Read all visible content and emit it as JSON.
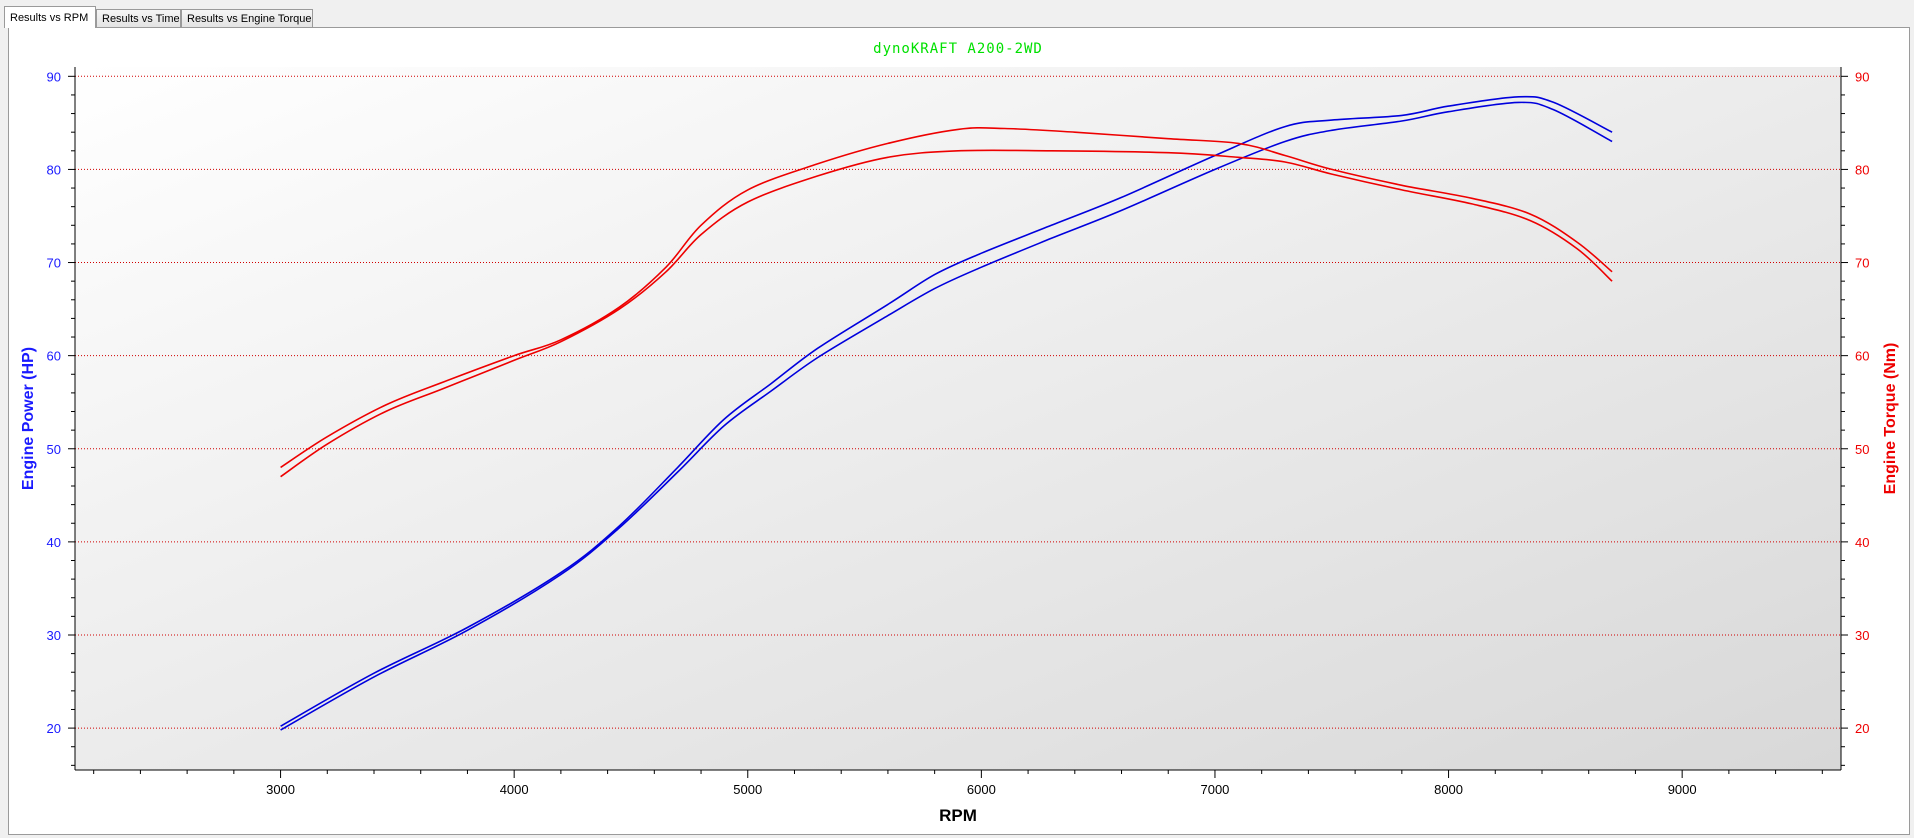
{
  "tabs": [
    {
      "label": "Results vs RPM",
      "active": true
    },
    {
      "label": "Results vs Time",
      "active": false
    },
    {
      "label": "Results vs Engine Torque",
      "active": false
    }
  ],
  "chart_data": {
    "type": "line",
    "title": "dynoKRAFT A200-2WD",
    "title_color": "#00e000",
    "xlabel": "RPM",
    "ylabel_left": "Engine Power (HP)",
    "ylabel_right": "Engine Torque (Nm)",
    "xlim": [
      2120,
      9680
    ],
    "ylim_left": [
      15.5,
      91
    ],
    "ylim_right": [
      15.5,
      91
    ],
    "x_ticks": [
      3000,
      4000,
      5000,
      6000,
      7000,
      8000,
      9000
    ],
    "y_ticks_left": [
      20,
      30,
      40,
      50,
      60,
      70,
      80,
      90
    ],
    "y_ticks_right": [
      20,
      30,
      40,
      50,
      60,
      70,
      80,
      90
    ],
    "grid": "horizontal dotted",
    "colors": {
      "power": "#0000dd",
      "torque": "#ee0000",
      "left_axis": "#1a1aff",
      "right_axis": "#ee0000",
      "grid": "#d00000"
    },
    "series": [
      {
        "axis": "left",
        "color": "#0000dd",
        "points": [
          [
            3000,
            19.8
          ],
          [
            3400,
            25.5
          ],
          [
            3800,
            30.5
          ],
          [
            4200,
            36.5
          ],
          [
            4450,
            41.5
          ],
          [
            4700,
            47.5
          ],
          [
            4900,
            52.5
          ],
          [
            5100,
            56.2
          ],
          [
            5300,
            59.8
          ],
          [
            5600,
            64.3
          ],
          [
            5800,
            67.2
          ],
          [
            6000,
            69.5
          ],
          [
            6300,
            72.6
          ],
          [
            6600,
            75.6
          ],
          [
            7000,
            80
          ],
          [
            7300,
            83
          ],
          [
            7500,
            84.2
          ],
          [
            7800,
            85.2
          ],
          [
            8000,
            86.2
          ],
          [
            8300,
            87.2
          ],
          [
            8450,
            86.4
          ],
          [
            8700,
            83
          ]
        ]
      },
      {
        "axis": "left",
        "color": "#0000dd",
        "points": [
          [
            3000,
            20.2
          ],
          [
            3400,
            25.9
          ],
          [
            3800,
            30.8
          ],
          [
            4200,
            36.7
          ],
          [
            4450,
            41.7
          ],
          [
            4700,
            48
          ],
          [
            4900,
            53.2
          ],
          [
            5100,
            57
          ],
          [
            5300,
            60.8
          ],
          [
            5600,
            65.5
          ],
          [
            5800,
            68.7
          ],
          [
            6000,
            71
          ],
          [
            6300,
            74
          ],
          [
            6600,
            77
          ],
          [
            7000,
            81.5
          ],
          [
            7300,
            84.6
          ],
          [
            7500,
            85.3
          ],
          [
            7800,
            85.8
          ],
          [
            8000,
            86.8
          ],
          [
            8300,
            87.8
          ],
          [
            8450,
            87.2
          ],
          [
            8700,
            84
          ]
        ]
      },
      {
        "axis": "right",
        "color": "#ee0000",
        "points": [
          [
            3000,
            47
          ],
          [
            3200,
            50.5
          ],
          [
            3450,
            54
          ],
          [
            3700,
            56.5
          ],
          [
            4000,
            59.5
          ],
          [
            4200,
            61.5
          ],
          [
            4450,
            65
          ],
          [
            4650,
            69
          ],
          [
            4800,
            73
          ],
          [
            5000,
            76.5
          ],
          [
            5300,
            79.3
          ],
          [
            5600,
            81.3
          ],
          [
            5900,
            82
          ],
          [
            6300,
            82
          ],
          [
            6800,
            81.8
          ],
          [
            7100,
            81.3
          ],
          [
            7300,
            80.8
          ],
          [
            7500,
            79.5
          ],
          [
            7800,
            77.8
          ],
          [
            8100,
            76.3
          ],
          [
            8350,
            74.5
          ],
          [
            8550,
            71.5
          ],
          [
            8700,
            68
          ]
        ]
      },
      {
        "axis": "right",
        "color": "#ee0000",
        "points": [
          [
            3000,
            48
          ],
          [
            3200,
            51.3
          ],
          [
            3450,
            54.7
          ],
          [
            3700,
            57.2
          ],
          [
            4000,
            60
          ],
          [
            4200,
            61.7
          ],
          [
            4450,
            65.2
          ],
          [
            4650,
            69.5
          ],
          [
            4800,
            74
          ],
          [
            5000,
            77.8
          ],
          [
            5300,
            80.6
          ],
          [
            5600,
            82.8
          ],
          [
            5900,
            84.3
          ],
          [
            6100,
            84.4
          ],
          [
            6400,
            84
          ],
          [
            6800,
            83.3
          ],
          [
            7100,
            82.8
          ],
          [
            7300,
            81.5
          ],
          [
            7500,
            80
          ],
          [
            7800,
            78.3
          ],
          [
            8100,
            76.9
          ],
          [
            8350,
            75.2
          ],
          [
            8550,
            72.2
          ],
          [
            8700,
            69
          ]
        ]
      }
    ]
  }
}
